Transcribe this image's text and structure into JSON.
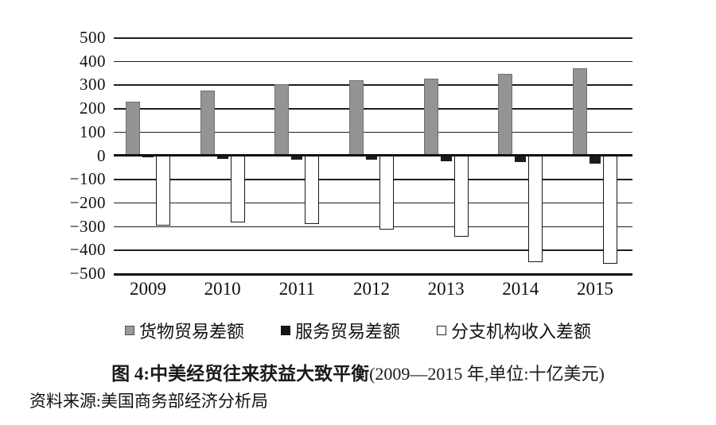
{
  "figure": {
    "caption_bold": "图 4:中美经贸往来获益大致平衡",
    "caption_normal": "(2009—2015 年,单位:十亿美元)",
    "source": "资料来源:美国商务部经济分析局"
  },
  "legend": [
    {
      "label": "货物贸易差额",
      "swatch": "gray"
    },
    {
      "label": "服务贸易差额",
      "swatch": "black"
    },
    {
      "label": "分支机构收入差额",
      "swatch": "white"
    }
  ],
  "colors": {
    "goods_bar": "#949494",
    "services_bar": "#1c1c1c",
    "branch_bar_fill": "#ffffff",
    "branch_bar_border": "#1a1a1a"
  },
  "chart_data": {
    "type": "bar",
    "categories": [
      "2009",
      "2010",
      "2011",
      "2012",
      "2013",
      "2014",
      "2015"
    ],
    "series": [
      {
        "name": "货物贸易差额",
        "key": "goods",
        "values": [
          227,
          274,
          300,
          319,
          325,
          345,
          370
        ]
      },
      {
        "name": "服务贸易差额",
        "key": "services",
        "values": [
          -9,
          -14,
          -18,
          -20,
          -25,
          -28,
          -36
        ]
      },
      {
        "name": "分支机构收入差额",
        "key": "branch",
        "values": [
          -298,
          -285,
          -290,
          -315,
          -345,
          -452,
          -458
        ]
      }
    ],
    "ylim": [
      -500,
      500
    ],
    "y_ticks": [
      500,
      400,
      300,
      200,
      100,
      0,
      -100,
      -200,
      -300,
      -400,
      -500
    ],
    "grid": true,
    "legend_position": "bottom",
    "title": "图 4:中美经贸往来获益大致平衡(2009—2015 年,单位:十亿美元)",
    "xlabel": "",
    "ylabel": ""
  }
}
